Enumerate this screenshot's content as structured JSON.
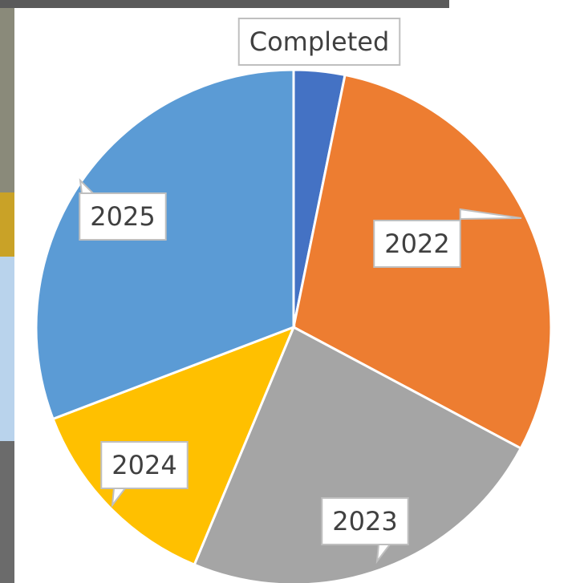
{
  "chart_data": {
    "type": "pie",
    "categories": [
      "Completed",
      "2022",
      "2023",
      "2024",
      "2025"
    ],
    "values": [
      3.2,
      29.6,
      23.5,
      12.9,
      30.8
    ],
    "colors": [
      "#4472c4",
      "#ed7d31",
      "#a5a5a5",
      "#ffc000",
      "#5b9bd5"
    ]
  }
}
